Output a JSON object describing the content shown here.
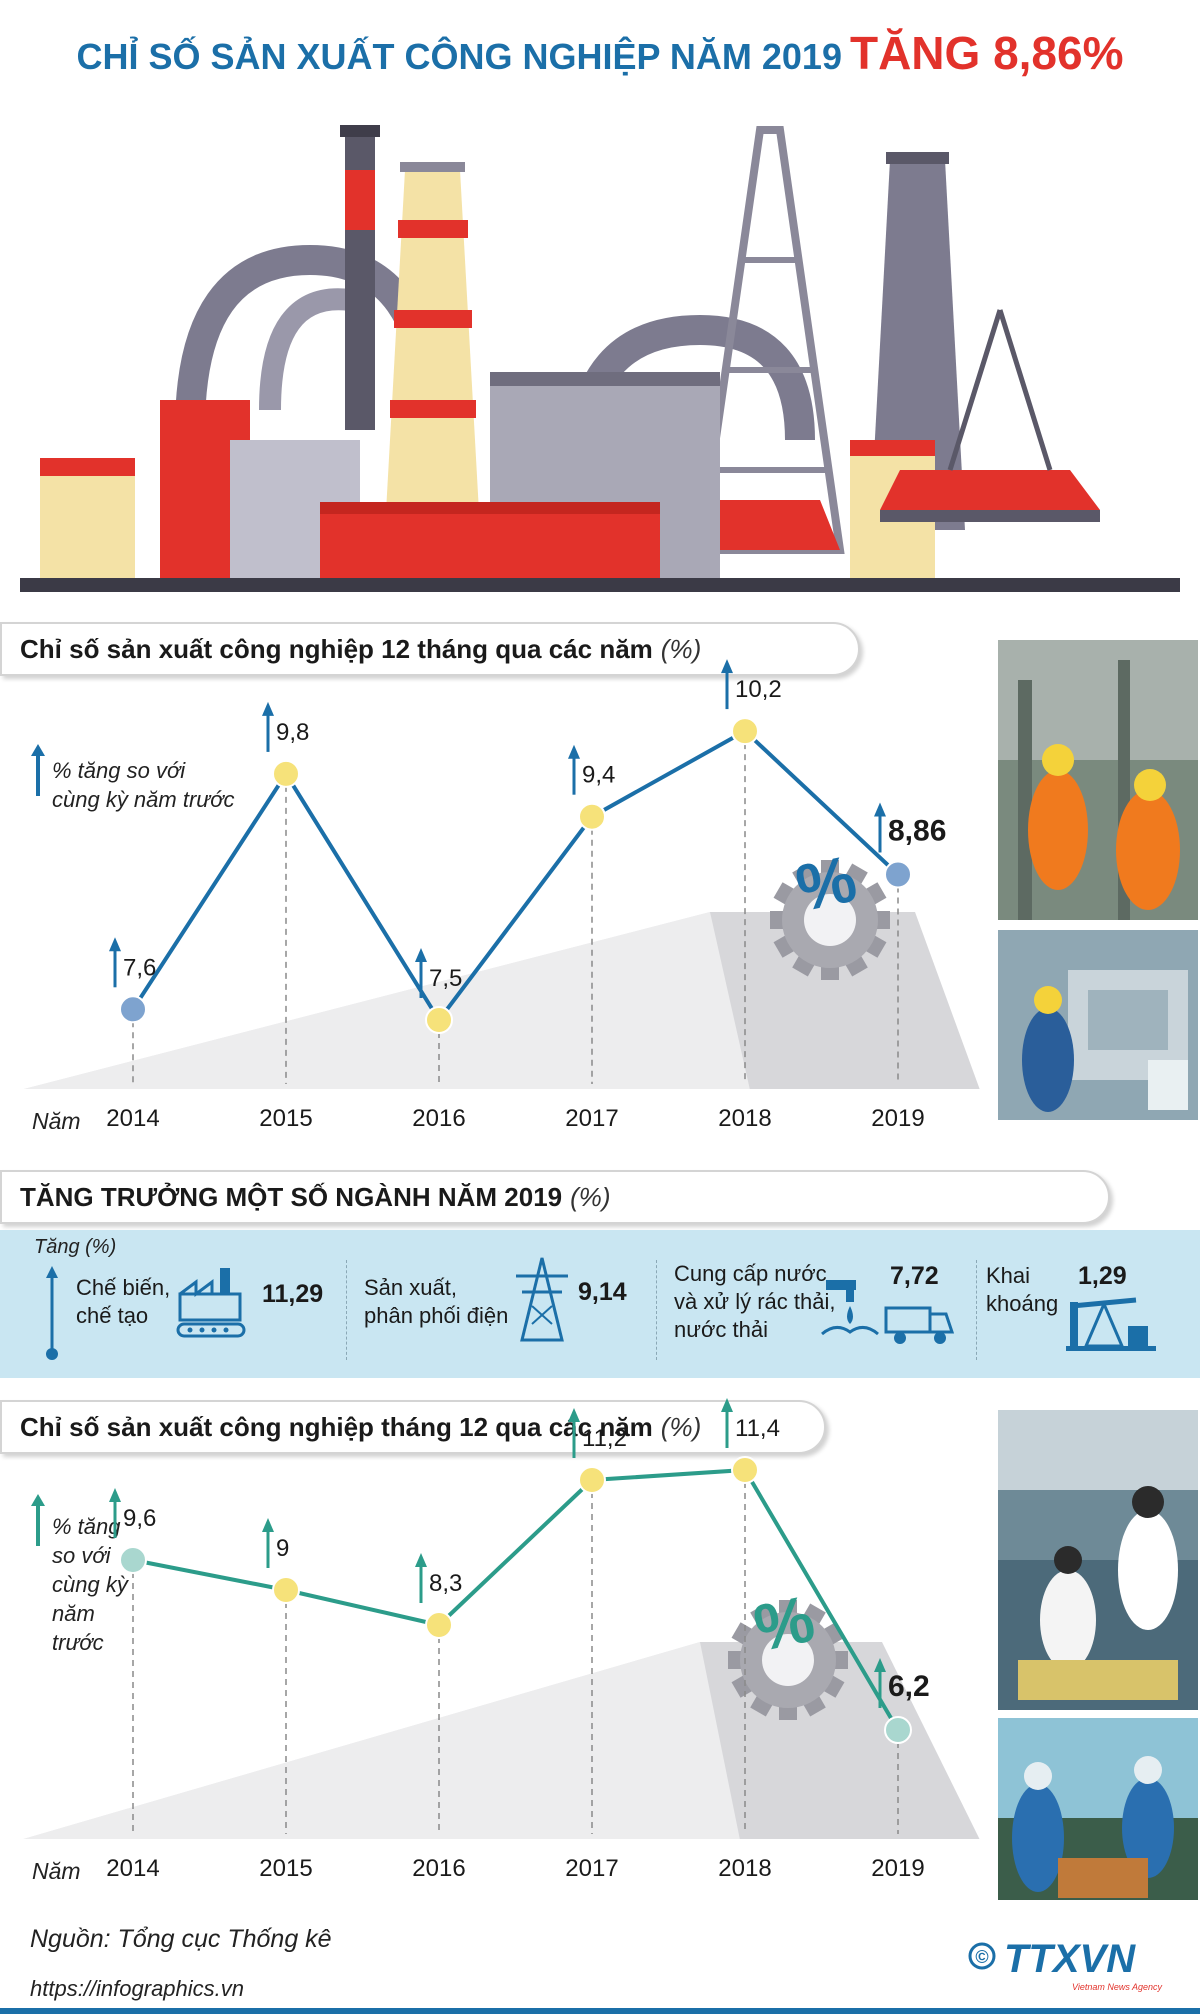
{
  "title": {
    "part1": "CHỈ SỐ SẢN XUẤT CÔNG NGHIỆP NĂM 2019",
    "part2": "TĂNG 8,86%"
  },
  "colors": {
    "blue": "#1b6fa8",
    "red": "#e2322b",
    "teal": "#2c9c8a",
    "yellow": "#f6e27a",
    "band": "#c9e6f2"
  },
  "chart1": {
    "heading": "Chỉ số sản xuất công nghiệp 12 tháng qua các năm",
    "unit": "(%)",
    "legend": [
      "% tăng so với",
      "cùng kỳ năm trước"
    ],
    "xlabel": "Năm"
  },
  "sectors": {
    "ylabel": "Tăng (%)",
    "items": [
      {
        "lines": [
          "Chế biến,",
          "chế tạo"
        ],
        "value": "11,29",
        "icon": "factory-icon"
      },
      {
        "lines": [
          "Sản xuất,",
          "phân phối điện"
        ],
        "value": "9,14",
        "icon": "power-tower-icon"
      },
      {
        "lines": [
          "Cung cấp nước",
          "và xử lý rác thải,",
          "nước thải"
        ],
        "value": "7,72",
        "icon": "water-truck-icon"
      },
      {
        "lines": [
          "Khai",
          "khoáng"
        ],
        "value": "1,29",
        "icon": "oil-pump-icon"
      }
    ]
  },
  "sectors_heading": {
    "title": "TĂNG TRƯỞNG MỘT SỐ NGÀNH NĂM 2019",
    "unit": "(%)"
  },
  "chart2": {
    "heading": "Chỉ số sản xuất công nghiệp tháng 12 qua các năm",
    "unit": "(%)",
    "legend": [
      "% tăng",
      "so với",
      "cùng kỳ",
      "năm",
      "trước"
    ],
    "xlabel": "Năm"
  },
  "chart_data": [
    {
      "type": "line",
      "title": "Chỉ số sản xuất công nghiệp 12 tháng qua các năm (%)",
      "x": [
        "2014",
        "2015",
        "2016",
        "2017",
        "2018",
        "2019"
      ],
      "values": [
        7.6,
        9.8,
        7.5,
        9.4,
        10.2,
        8.86
      ],
      "labels": [
        "7,6",
        "9,8",
        "7,5",
        "9,4",
        "10,2",
        "8,86"
      ],
      "xlabel": "Năm",
      "color": "#1b6fa8"
    },
    {
      "type": "line",
      "title": "Chỉ số sản xuất công nghiệp tháng 12 qua các năm (%)",
      "x": [
        "2014",
        "2015",
        "2016",
        "2017",
        "2018",
        "2019"
      ],
      "values": [
        9.6,
        9,
        8.3,
        11.2,
        11.4,
        6.2
      ],
      "labels": [
        "9,6",
        "9",
        "8,3",
        "11,2",
        "11,4",
        "6,2"
      ],
      "xlabel": "Năm",
      "color": "#2c9c8a"
    }
  ],
  "footer": {
    "source": "Nguồn: Tổng cục Thống kê",
    "url": "https://infographics.vn",
    "logo": "TTXVN",
    "logo_sub": "Vietnam News Agency",
    "copyright": "©"
  }
}
